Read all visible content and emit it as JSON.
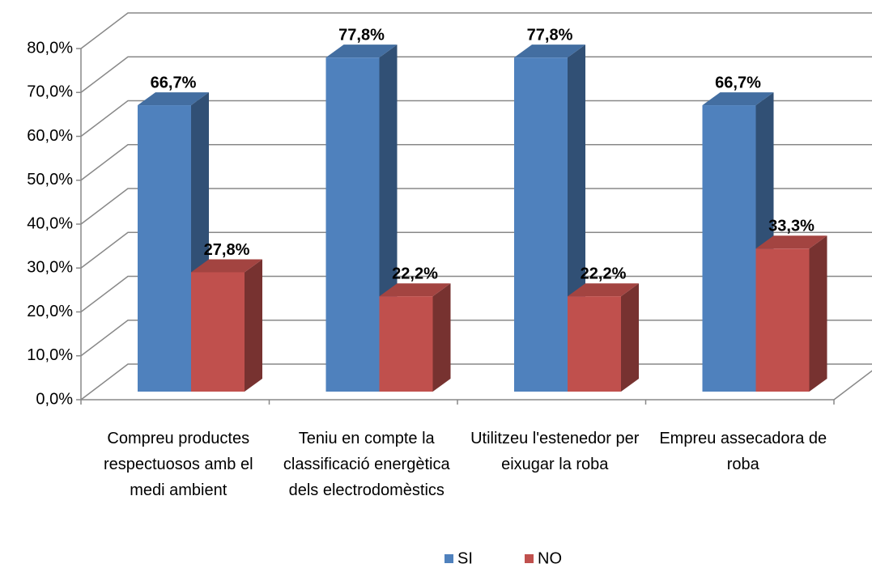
{
  "chart_data": {
    "type": "bar3d",
    "categories": [
      "Compreu productes respectuosos amb el medi ambient",
      "Teniu en compte la classificació energètica dels electrodomèstics",
      "Utilitzeu l'estenedor per eixugar la roba",
      "Empreu assecadora de roba"
    ],
    "series": [
      {
        "name": "SI",
        "color": "#4f81bd",
        "values": [
          66.7,
          77.8,
          77.8,
          66.7
        ],
        "value_labels": [
          "66,7%",
          "77,8%",
          "77,8%",
          "66,7%"
        ]
      },
      {
        "name": "NO",
        "color": "#c0504d",
        "values": [
          27.8,
          22.2,
          22.2,
          33.3
        ],
        "value_labels": [
          "27,8%",
          "22,2%",
          "22,2%",
          "33,3%"
        ]
      }
    ],
    "ylim": [
      0,
      80
    ],
    "yticks": [
      {
        "value": 0,
        "label": "0,0%"
      },
      {
        "value": 10,
        "label": "10,0%"
      },
      {
        "value": 20,
        "label": "20,0%"
      },
      {
        "value": 30,
        "label": "30,0%"
      },
      {
        "value": 40,
        "label": "40,0%"
      },
      {
        "value": 50,
        "label": "50,0%"
      },
      {
        "value": 60,
        "label": "60,0%"
      },
      {
        "value": 70,
        "label": "70,0%"
      },
      {
        "value": 80,
        "label": "80,0%"
      }
    ],
    "grid": true,
    "legend": "bottom"
  }
}
